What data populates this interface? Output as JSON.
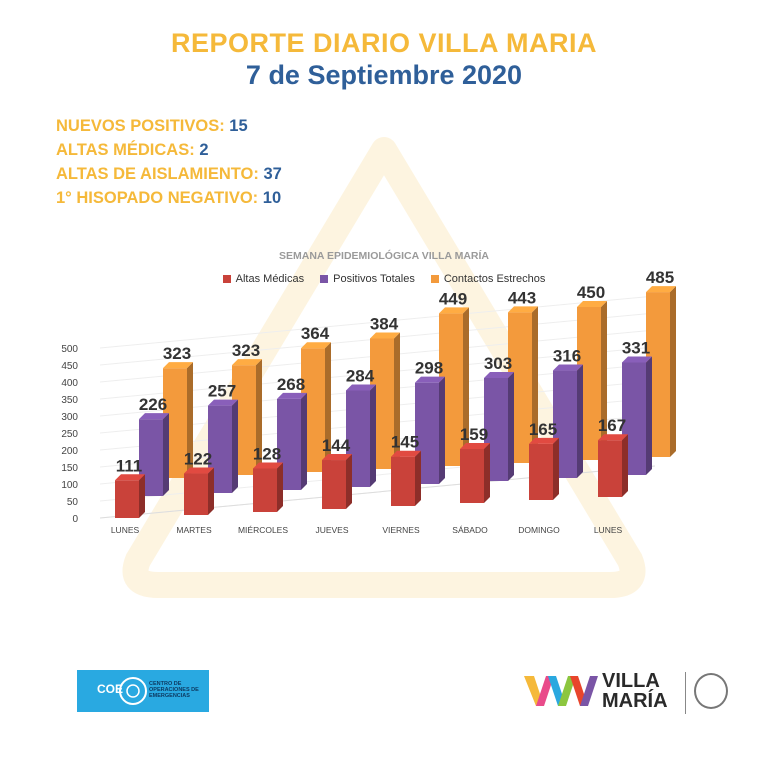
{
  "header": {
    "title": "REPORTE DIARIO VILLA MARIA",
    "date": "7 de Septiembre 2020"
  },
  "stats": [
    {
      "label": "NUEVOS POSITIVOS:",
      "value": "15"
    },
    {
      "label": "ALTAS MÉDICAS:",
      "value": "2"
    },
    {
      "label": "ALTAS DE AISLAMIENTO:",
      "value": "37"
    },
    {
      "label": "1° HISOPADO NEGATIVO:",
      "value": "10"
    }
  ],
  "chart_data": {
    "type": "bar",
    "title": "SEMANA EPIDEMIOLÓGICA VILLA MARÍA",
    "categories": [
      "LUNES",
      "MARTES",
      "MIÉRCOLES",
      "JUEVES",
      "VIERNES",
      "SÁBADO",
      "DOMINGO",
      "LUNES"
    ],
    "series": [
      {
        "name": "Altas Médicas",
        "color": "#c9423a",
        "values": [
          111,
          122,
          128,
          144,
          145,
          159,
          165,
          167
        ]
      },
      {
        "name": "Positivos Totales",
        "color": "#7a55a6",
        "values": [
          226,
          257,
          268,
          284,
          298,
          303,
          316,
          331
        ]
      },
      {
        "name": "Contactos Estrechos",
        "color": "#f39a3c",
        "values": [
          323,
          323,
          364,
          384,
          449,
          443,
          450,
          485
        ]
      }
    ],
    "yticks": [
      "0",
      "50",
      "100",
      "150",
      "200",
      "250",
      "300",
      "350",
      "400",
      "450",
      "500"
    ],
    "ylim": [
      0,
      500
    ],
    "legend": "top",
    "grid": true
  },
  "footer": {
    "coe_abbr": "COE",
    "coe_name_1": "CENTRO DE",
    "coe_name_2": "OPERACIONES DE",
    "coe_name_3": "EMERGENCIAS",
    "city_1": "VILLA",
    "city_2": "MARÍA"
  },
  "colors": {
    "accent_yellow": "#f5b93a",
    "accent_blue": "#2f5f99"
  }
}
